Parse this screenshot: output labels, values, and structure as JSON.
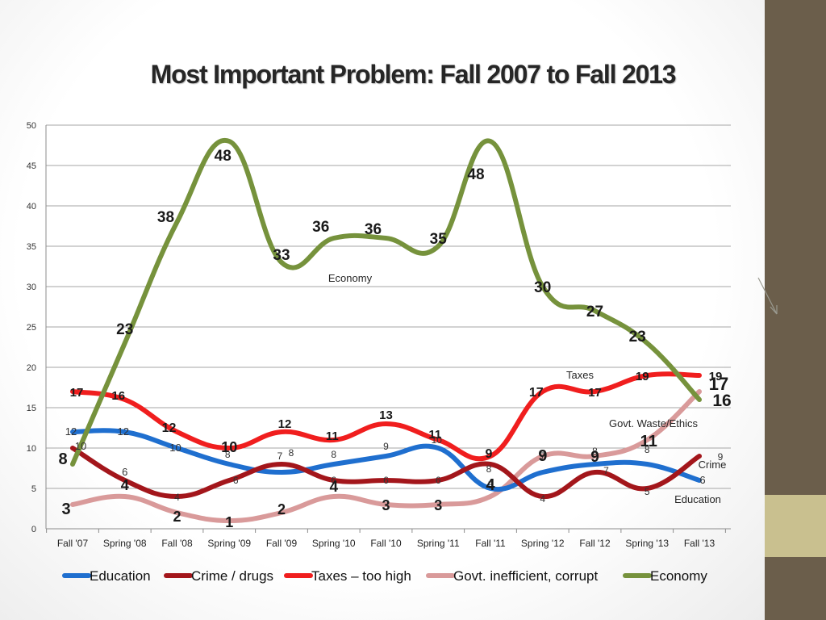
{
  "title": "Most Important Problem: Fall 2007 to Fall 2013",
  "chart_data": {
    "type": "line",
    "title": "Most Important Problem: Fall 2007 to Fall 2013",
    "categories": [
      "Fall '07",
      "Spring '08",
      "Fall '08",
      "Spring '09",
      "Fall '09",
      "Spring '10",
      "Fall '10",
      "Spring '11",
      "Fall '11",
      "Spring '12",
      "Fall '12",
      "Spring '13",
      "Fall '13"
    ],
    "ylim": [
      0,
      50
    ],
    "yticks": [
      "0",
      "5",
      "10",
      "15",
      "20",
      "25",
      "30",
      "35",
      "40",
      "45",
      "50"
    ],
    "grid": true,
    "legend": "bottom",
    "series": [
      {
        "name": "Education",
        "color": "#1f6fcf",
        "values": [
          12,
          12,
          10,
          8,
          7,
          8,
          9,
          10,
          5,
          7,
          8,
          8,
          6
        ],
        "labels": [
          "12",
          "12",
          "10",
          "8",
          "7",
          "8",
          "9",
          "10",
          "5",
          "7",
          "8",
          "8",
          "6"
        ]
      },
      {
        "name": "Crime / drugs",
        "color": "#a3161b",
        "values": [
          10,
          6,
          4,
          6,
          8,
          6,
          6,
          6,
          8,
          4,
          7,
          5,
          9
        ],
        "labels": [
          "10",
          "6",
          "4",
          "6",
          "8",
          "6",
          "6",
          "6",
          "8",
          "4",
          "7",
          "5",
          "9"
        ]
      },
      {
        "name": "Taxes – too high",
        "color": "#f01e1e",
        "values": [
          17,
          16,
          12,
          10,
          12,
          11,
          13,
          11,
          9,
          17,
          17,
          19,
          19
        ],
        "labels": [
          "17",
          "16",
          "12",
          "10",
          "12",
          "11",
          "13",
          "11",
          "9",
          "17",
          "17",
          "19",
          "19"
        ]
      },
      {
        "name": "Govt. inefficient, corrupt",
        "color": "#d99a9a",
        "values": [
          3,
          4,
          2,
          1,
          2,
          4,
          3,
          3,
          4,
          9,
          9,
          11,
          17
        ],
        "labels": [
          "3",
          "4",
          "2",
          "1",
          "2",
          "4",
          "3",
          "3",
          "4",
          "9",
          "9",
          "11",
          "17"
        ]
      },
      {
        "name": "Economy",
        "color": "#76923c",
        "values": [
          8,
          23,
          38,
          48,
          33,
          36,
          36,
          35,
          48,
          30,
          27,
          23,
          16
        ],
        "labels": [
          "8",
          "23",
          "38",
          "48",
          "33",
          "36",
          "36",
          "35",
          "48",
          "30",
          "27",
          "23",
          "16"
        ]
      }
    ],
    "annotations": [
      "Economy",
      "Taxes",
      "Govt. Waste/Ethics",
      "Crime",
      "Education"
    ]
  }
}
